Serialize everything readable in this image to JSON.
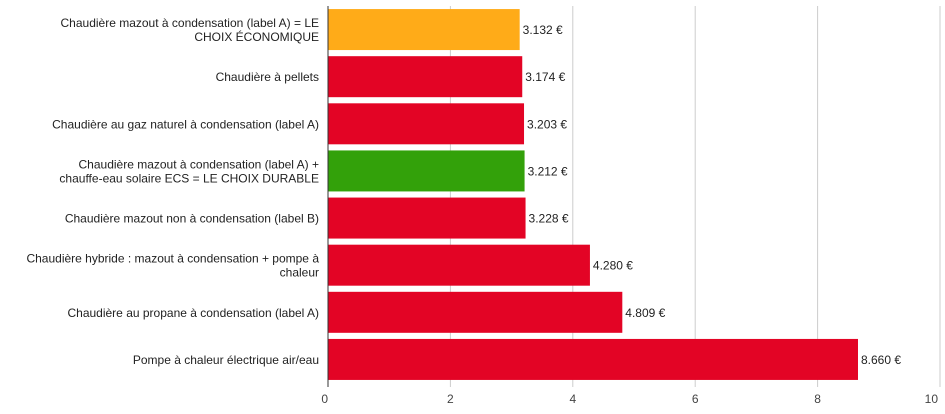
{
  "chart_data": {
    "type": "bar",
    "orientation": "horizontal",
    "categories": [
      "Chaudière mazout à condensation (label A) = LE CHOIX ÉCONOMIQUE",
      "Chaudière à pellets",
      "Chaudière au gaz naturel à condensation (label A)",
      "Chaudière mazout à condensation (label A) + chauffe-eau solaire ECS = LE CHOIX DURABLE",
      "Chaudière mazout non à condensation (label B)",
      "Chaudière hybride : mazout à condensation + pompe à chaleur",
      "Chaudière au propane à condensation (label A)",
      "Pompe à chaleur électrique air/eau"
    ],
    "category_lines": [
      [
        "Chaudière mazout à condensation (label A) = LE",
        "CHOIX ÉCONOMIQUE"
      ],
      [
        "Chaudière à pellets"
      ],
      [
        "Chaudière au gaz naturel à condensation (label A)"
      ],
      [
        "Chaudière mazout à condensation (label A) +",
        "chauffe-eau solaire ECS = LE CHOIX DURABLE"
      ],
      [
        "Chaudière mazout non à condensation (label B)"
      ],
      [
        "Chaudière hybride : mazout à condensation + pompe à",
        "chaleur"
      ],
      [
        "Chaudière au propane à condensation (label A)"
      ],
      [
        "Pompe à chaleur électrique air/eau"
      ]
    ],
    "values": [
      3.132,
      3.174,
      3.203,
      3.212,
      3.228,
      4.28,
      4.809,
      8.66
    ],
    "value_labels": [
      "3.132 €",
      "3.174 €",
      "3.203 €",
      "3.212 €",
      "3.228 €",
      "4.280 €",
      "4.809 €",
      "8.660 €"
    ],
    "bar_colors": [
      "#FFAB18",
      "#E30425",
      "#E30425",
      "#33A10A",
      "#E30425",
      "#E30425",
      "#E30425",
      "#E30425"
    ],
    "xlim": [
      0,
      10
    ],
    "x_ticks": [
      0,
      2,
      4,
      6,
      8,
      10
    ],
    "x_tick_labels": [
      "0",
      "2",
      "4",
      "6",
      "8",
      "10"
    ],
    "grid": true,
    "title": "",
    "xlabel": "",
    "ylabel": ""
  }
}
